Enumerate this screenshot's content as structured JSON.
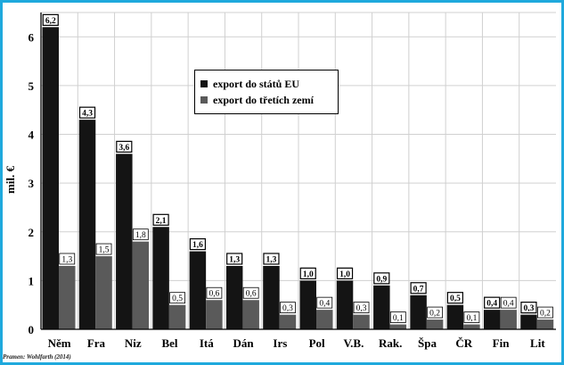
{
  "chart_data": {
    "type": "bar",
    "categories": [
      "Něm",
      "Fra",
      "Niz",
      "Bel",
      "Itá",
      "Dán",
      "Irs",
      "Pol",
      "V.B.",
      "Rak.",
      "Špa",
      "ČR",
      "Fin",
      "Lit"
    ],
    "series": [
      {
        "name": "export do států EU",
        "values": [
          6.2,
          4.3,
          3.6,
          2.1,
          1.6,
          1.3,
          1.3,
          1.0,
          1.0,
          0.9,
          0.7,
          0.5,
          0.4,
          0.3
        ],
        "labels": [
          "6,2",
          "4,3",
          "3,6",
          "2,1",
          "1,6",
          "1,3",
          "1,3",
          "1,0",
          "1,0",
          "0,9",
          "0,7",
          "0,5",
          "0,4",
          "0,3"
        ]
      },
      {
        "name": "export do třetích zemí",
        "values": [
          1.3,
          1.5,
          1.8,
          0.5,
          0.6,
          0.6,
          0.3,
          0.4,
          0.3,
          0.1,
          0.2,
          0.1,
          0.4,
          0.2
        ],
        "labels": [
          "1,3",
          "1,5",
          "1,8",
          "0,5",
          "0,6",
          "0,6",
          "0,3",
          "0,4",
          "0,3",
          "0,1",
          "0,2",
          "0,1",
          "0,4",
          "0,2"
        ]
      }
    ],
    "ylabel": "mil. €",
    "ylim": [
      0,
      6.5
    ],
    "yticks": [
      "0",
      "1",
      "2",
      "3",
      "4",
      "5",
      "6"
    ],
    "grid": true,
    "legend_position": "top-center"
  },
  "colors": {
    "frame": "#1fa9dd",
    "series_eu": "#141414",
    "series_third": "#5a5a5a",
    "grid": "#d0d0d0"
  },
  "source": "Pramen: Wohlfarth (2014)"
}
